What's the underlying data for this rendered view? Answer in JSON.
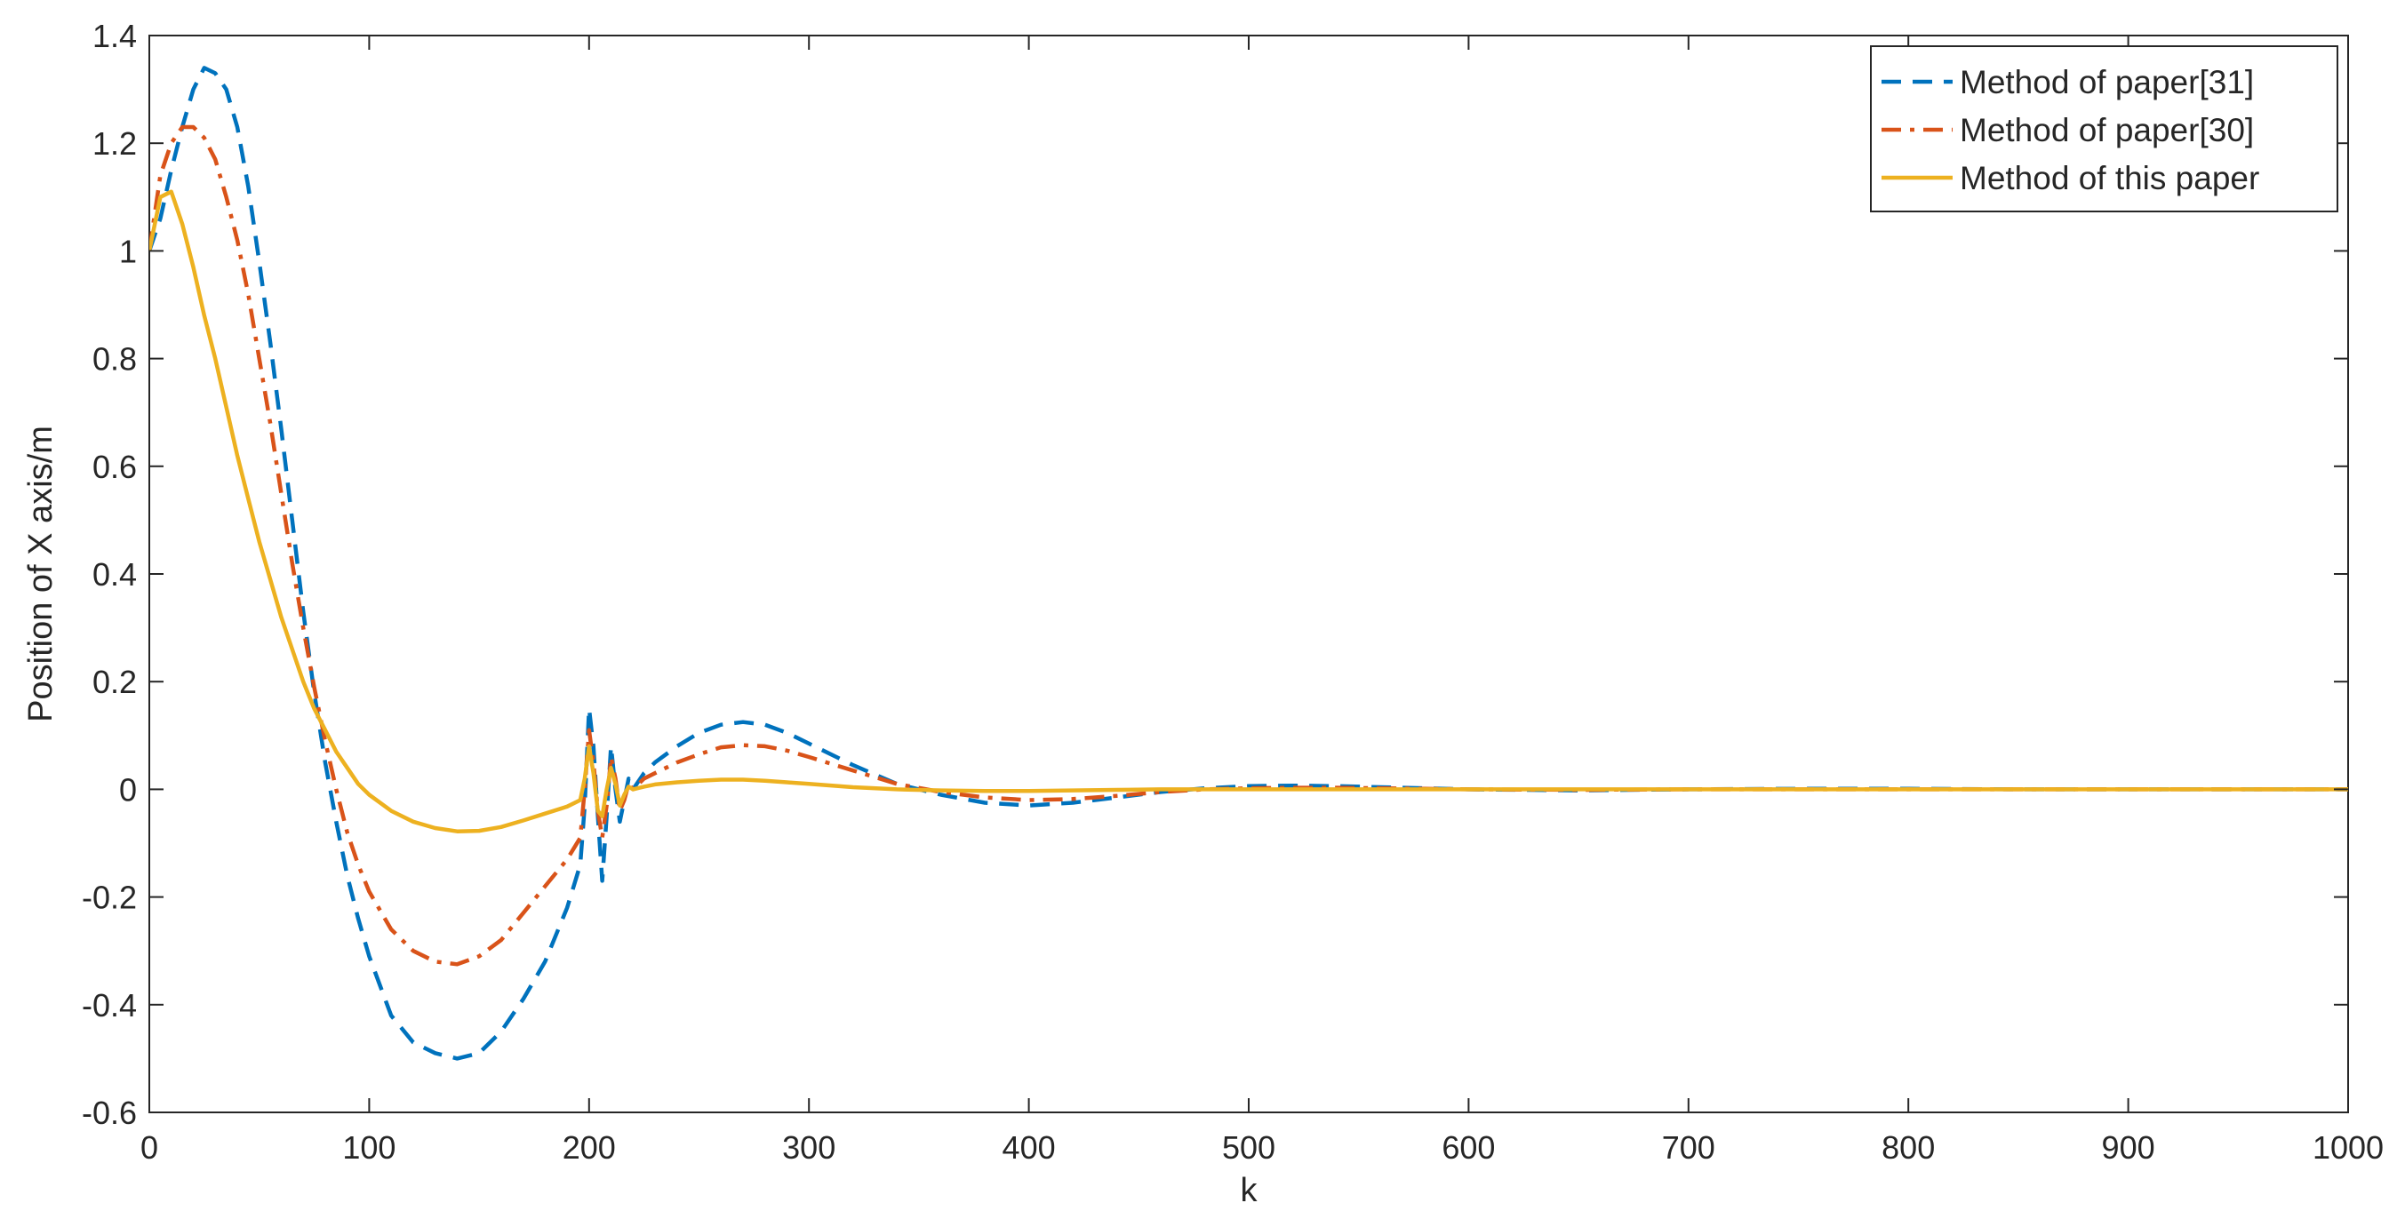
{
  "chart_data": {
    "type": "line",
    "title": "",
    "xlabel": "k",
    "ylabel": "Position of X axis/m",
    "xlim": [
      0,
      1000
    ],
    "ylim": [
      -0.6,
      1.4
    ],
    "xticks": [
      0,
      100,
      200,
      300,
      400,
      500,
      600,
      700,
      800,
      900,
      1000
    ],
    "xtick_labels": [
      "0",
      "100",
      "200",
      "300",
      "400",
      "500",
      "600",
      "700",
      "800",
      "900",
      "1000"
    ],
    "yticks": [
      -0.6,
      -0.4,
      -0.2,
      0,
      0.2,
      0.4,
      0.6,
      0.8,
      1,
      1.2,
      1.4
    ],
    "ytick_labels": [
      "-0.6",
      "-0.4",
      "-0.2",
      "0",
      "0.2",
      "0.4",
      "0.6",
      "0.8",
      "1",
      "1.2",
      "1.4"
    ],
    "grid": false,
    "legend_position": "top-right",
    "series": [
      {
        "name": "Method of paper[31]",
        "color": "#0072BD",
        "style": "dashed",
        "x": [
          0,
          5,
          10,
          15,
          20,
          25,
          30,
          35,
          40,
          45,
          50,
          55,
          60,
          65,
          70,
          75,
          80,
          85,
          90,
          95,
          100,
          110,
          120,
          130,
          140,
          150,
          160,
          170,
          180,
          190,
          196,
          198,
          200,
          202,
          204,
          206,
          208,
          210,
          212,
          214,
          216,
          218,
          220,
          225,
          230,
          240,
          250,
          260,
          270,
          280,
          290,
          300,
          320,
          340,
          360,
          380,
          400,
          420,
          440,
          460,
          480,
          500,
          520,
          540,
          560,
          580,
          600,
          650,
          700,
          750,
          800,
          850,
          900,
          950,
          1000
        ],
        "y": [
          1.0,
          1.06,
          1.15,
          1.23,
          1.3,
          1.34,
          1.33,
          1.3,
          1.23,
          1.12,
          0.98,
          0.83,
          0.67,
          0.5,
          0.33,
          0.18,
          0.05,
          -0.06,
          -0.16,
          -0.24,
          -0.31,
          -0.42,
          -0.47,
          -0.49,
          -0.5,
          -0.49,
          -0.45,
          -0.39,
          -0.32,
          -0.22,
          -0.14,
          -0.03,
          0.15,
          0.08,
          -0.05,
          -0.17,
          -0.05,
          0.08,
          0.0,
          -0.06,
          -0.02,
          0.02,
          0.0,
          0.03,
          0.05,
          0.08,
          0.105,
          0.12,
          0.125,
          0.12,
          0.105,
          0.085,
          0.045,
          0.01,
          -0.01,
          -0.025,
          -0.03,
          -0.025,
          -0.015,
          -0.005,
          0.002,
          0.006,
          0.007,
          0.006,
          0.004,
          0.002,
          0.0,
          -0.002,
          0.0,
          0.001,
          0.001,
          0.0,
          0.0,
          0.0,
          0.0
        ]
      },
      {
        "name": "Method of paper[30]",
        "color": "#D95319",
        "style": "dashdot",
        "x": [
          0,
          5,
          10,
          15,
          20,
          25,
          30,
          35,
          40,
          45,
          50,
          55,
          60,
          65,
          70,
          75,
          80,
          85,
          90,
          95,
          100,
          110,
          120,
          130,
          140,
          150,
          160,
          170,
          180,
          190,
          196,
          198,
          200,
          202,
          204,
          206,
          208,
          210,
          212,
          214,
          216,
          218,
          220,
          225,
          230,
          240,
          250,
          260,
          270,
          280,
          290,
          300,
          320,
          340,
          360,
          380,
          400,
          420,
          440,
          460,
          480,
          500,
          520,
          540,
          560,
          580,
          600,
          650,
          700,
          750,
          800,
          850,
          900,
          950,
          1000
        ],
        "y": [
          1.0,
          1.14,
          1.2,
          1.23,
          1.23,
          1.21,
          1.17,
          1.1,
          1.02,
          0.92,
          0.8,
          0.68,
          0.55,
          0.42,
          0.3,
          0.19,
          0.09,
          0.0,
          -0.08,
          -0.14,
          -0.19,
          -0.26,
          -0.3,
          -0.32,
          -0.325,
          -0.31,
          -0.28,
          -0.23,
          -0.18,
          -0.13,
          -0.09,
          0.0,
          0.11,
          0.05,
          -0.04,
          -0.09,
          -0.03,
          0.06,
          0.02,
          -0.04,
          -0.02,
          0.01,
          0.0,
          0.02,
          0.03,
          0.05,
          0.065,
          0.078,
          0.082,
          0.08,
          0.072,
          0.06,
          0.035,
          0.01,
          -0.005,
          -0.015,
          -0.02,
          -0.018,
          -0.012,
          -0.005,
          0.0,
          0.002,
          0.003,
          0.003,
          0.002,
          0.001,
          0.0,
          -0.001,
          0.0,
          0.0,
          0.0,
          0.0,
          0.0,
          0.0,
          0.0
        ]
      },
      {
        "name": "Method of this paper",
        "color": "#EDB120",
        "style": "solid",
        "x": [
          0,
          5,
          10,
          15,
          20,
          25,
          30,
          35,
          40,
          45,
          50,
          55,
          60,
          65,
          70,
          75,
          80,
          85,
          90,
          95,
          100,
          110,
          120,
          130,
          140,
          150,
          160,
          170,
          180,
          190,
          196,
          198,
          200,
          202,
          204,
          206,
          208,
          210,
          212,
          214,
          216,
          218,
          220,
          225,
          230,
          240,
          250,
          260,
          270,
          280,
          290,
          300,
          320,
          340,
          360,
          380,
          400,
          420,
          440,
          460,
          480,
          500,
          520,
          540,
          560,
          580,
          600,
          650,
          700,
          750,
          800,
          850,
          900,
          950,
          1000
        ],
        "y": [
          1.0,
          1.1,
          1.11,
          1.05,
          0.97,
          0.88,
          0.8,
          0.71,
          0.62,
          0.54,
          0.46,
          0.39,
          0.32,
          0.26,
          0.2,
          0.15,
          0.11,
          0.07,
          0.04,
          0.01,
          -0.01,
          -0.04,
          -0.06,
          -0.072,
          -0.078,
          -0.077,
          -0.07,
          -0.058,
          -0.045,
          -0.032,
          -0.02,
          0.02,
          0.08,
          0.03,
          -0.04,
          -0.05,
          0.0,
          0.04,
          0.01,
          -0.03,
          -0.01,
          0.005,
          0.0,
          0.005,
          0.009,
          0.013,
          0.016,
          0.018,
          0.018,
          0.016,
          0.013,
          0.01,
          0.004,
          0.0,
          -0.002,
          -0.003,
          -0.003,
          -0.002,
          -0.001,
          0.0,
          0.0,
          0.0,
          0.0,
          0.0,
          0.0,
          0.0,
          0.0,
          0.0,
          0.0,
          0.0,
          0.0,
          0.0,
          0.0,
          0.0,
          0.0
        ]
      }
    ]
  }
}
